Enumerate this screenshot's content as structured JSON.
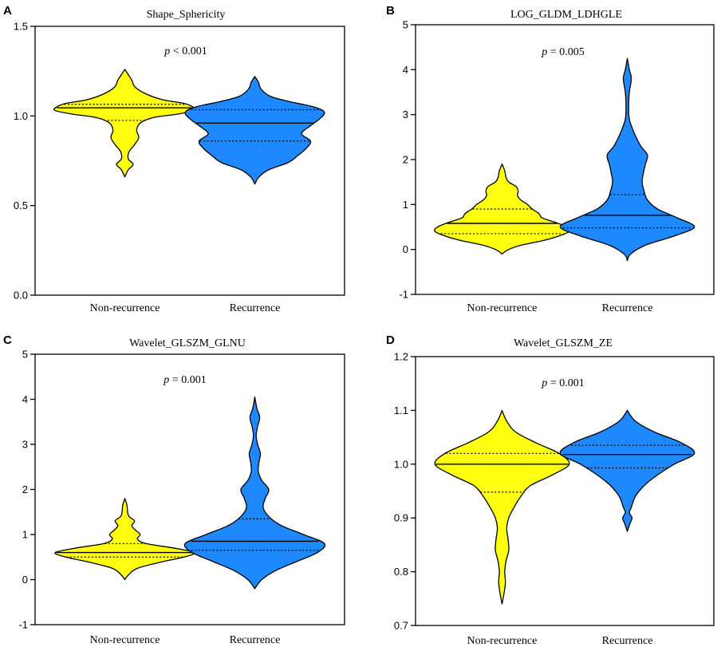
{
  "chart_data": [
    {
      "panel": "A",
      "type": "violin",
      "title": "Shape_Sphericity",
      "p_value": "< 0.001",
      "ylim": [
        0.0,
        1.5
      ],
      "yticks": [
        0.0,
        0.5,
        1.0,
        1.5
      ],
      "ytick_labels": [
        "0.0",
        "0.5",
        "1.0",
        "1.5"
      ],
      "categories": [
        "Non-recurrence",
        "Recurrence"
      ],
      "series": [
        {
          "name": "Non-recurrence",
          "color": "#FFFF10",
          "min": 0.66,
          "max": 1.26,
          "q1": 0.975,
          "median": 1.045,
          "q3": 1.065,
          "profile": [
            [
              0.66,
              0.0
            ],
            [
              0.7,
              0.05
            ],
            [
              0.73,
              0.12
            ],
            [
              0.76,
              0.05
            ],
            [
              0.8,
              0.06
            ],
            [
              0.84,
              0.14
            ],
            [
              0.88,
              0.2
            ],
            [
              0.92,
              0.17
            ],
            [
              0.96,
              0.22
            ],
            [
              0.99,
              0.4
            ],
            [
              1.01,
              0.75
            ],
            [
              1.03,
              1.0
            ],
            [
              1.05,
              0.98
            ],
            [
              1.07,
              0.85
            ],
            [
              1.09,
              0.55
            ],
            [
              1.12,
              0.32
            ],
            [
              1.16,
              0.15
            ],
            [
              1.2,
              0.1
            ],
            [
              1.23,
              0.05
            ],
            [
              1.26,
              0.0
            ]
          ]
        },
        {
          "name": "Recurrence",
          "color": "#1E88FF",
          "min": 0.62,
          "max": 1.22,
          "q1": 0.86,
          "median": 0.96,
          "q3": 1.035,
          "profile": [
            [
              0.62,
              0.0
            ],
            [
              0.66,
              0.06
            ],
            [
              0.7,
              0.2
            ],
            [
              0.74,
              0.48
            ],
            [
              0.78,
              0.62
            ],
            [
              0.82,
              0.74
            ],
            [
              0.86,
              0.8
            ],
            [
              0.9,
              0.67
            ],
            [
              0.94,
              0.78
            ],
            [
              0.98,
              0.92
            ],
            [
              1.02,
              1.0
            ],
            [
              1.05,
              0.85
            ],
            [
              1.08,
              0.5
            ],
            [
              1.11,
              0.22
            ],
            [
              1.15,
              0.09
            ],
            [
              1.19,
              0.05
            ],
            [
              1.22,
              0.0
            ]
          ]
        }
      ]
    },
    {
      "panel": "B",
      "type": "violin",
      "title": "LOG_GLDM_LDHGLE",
      "p_value": "= 0.005",
      "ylim": [
        -1,
        5
      ],
      "yticks": [
        -1,
        0,
        1,
        2,
        3,
        4,
        5
      ],
      "ytick_labels": [
        "-1",
        "0",
        "1",
        "2",
        "3",
        "4",
        "5"
      ],
      "categories": [
        "Non-recurrence",
        "Recurrence"
      ],
      "series": [
        {
          "name": "Non-recurrence",
          "color": "#FFFF10",
          "min": -0.1,
          "max": 1.9,
          "q1": 0.35,
          "median": 0.58,
          "q3": 0.9,
          "profile": [
            [
              -0.1,
              0.0
            ],
            [
              0.0,
              0.1
            ],
            [
              0.1,
              0.3
            ],
            [
              0.2,
              0.62
            ],
            [
              0.3,
              0.85
            ],
            [
              0.4,
              1.0
            ],
            [
              0.5,
              0.96
            ],
            [
              0.6,
              0.8
            ],
            [
              0.7,
              0.6
            ],
            [
              0.8,
              0.55
            ],
            [
              0.9,
              0.45
            ],
            [
              1.0,
              0.38
            ],
            [
              1.1,
              0.28
            ],
            [
              1.2,
              0.23
            ],
            [
              1.3,
              0.24
            ],
            [
              1.4,
              0.21
            ],
            [
              1.5,
              0.1
            ],
            [
              1.6,
              0.06
            ],
            [
              1.75,
              0.04
            ],
            [
              1.9,
              0.0
            ]
          ]
        },
        {
          "name": "Recurrence",
          "color": "#1E88FF",
          "min": -0.25,
          "max": 4.25,
          "q1": 0.48,
          "median": 0.76,
          "q3": 1.22,
          "profile": [
            [
              -0.25,
              0.0
            ],
            [
              -0.1,
              0.05
            ],
            [
              0.1,
              0.28
            ],
            [
              0.3,
              0.7
            ],
            [
              0.5,
              1.0
            ],
            [
              0.7,
              0.75
            ],
            [
              0.9,
              0.45
            ],
            [
              1.1,
              0.3
            ],
            [
              1.3,
              0.25
            ],
            [
              1.5,
              0.22
            ],
            [
              1.7,
              0.24
            ],
            [
              1.9,
              0.27
            ],
            [
              2.1,
              0.3
            ],
            [
              2.3,
              0.2
            ],
            [
              2.6,
              0.1
            ],
            [
              2.9,
              0.03
            ],
            [
              3.2,
              0.02
            ],
            [
              3.5,
              0.03
            ],
            [
              3.8,
              0.06
            ],
            [
              4.0,
              0.03
            ],
            [
              4.25,
              0.0
            ]
          ]
        }
      ]
    },
    {
      "panel": "C",
      "type": "violin",
      "title": "Wavelet_GLSZM_GLNU",
      "p_value": "= 0.001",
      "ylim": [
        -1,
        5
      ],
      "yticks": [
        -1,
        0,
        1,
        2,
        3,
        4,
        5
      ],
      "ytick_labels": [
        "-1",
        "0",
        "1",
        "2",
        "3",
        "4",
        "5"
      ],
      "categories": [
        "Non-recurrence",
        "Recurrence"
      ],
      "series": [
        {
          "name": "Non-recurrence",
          "color": "#FFFF10",
          "min": 0.0,
          "max": 1.8,
          "q1": 0.5,
          "median": 0.6,
          "q3": 0.8,
          "profile": [
            [
              0.0,
              0.0
            ],
            [
              0.1,
              0.05
            ],
            [
              0.25,
              0.18
            ],
            [
              0.4,
              0.55
            ],
            [
              0.5,
              0.85
            ],
            [
              0.6,
              1.0
            ],
            [
              0.7,
              0.7
            ],
            [
              0.8,
              0.3
            ],
            [
              0.9,
              0.18
            ],
            [
              1.0,
              0.22
            ],
            [
              1.1,
              0.15
            ],
            [
              1.2,
              0.1
            ],
            [
              1.3,
              0.14
            ],
            [
              1.4,
              0.06
            ],
            [
              1.5,
              0.04
            ],
            [
              1.65,
              0.03
            ],
            [
              1.8,
              0.0
            ]
          ]
        },
        {
          "name": "Recurrence",
          "color": "#1E88FF",
          "min": -0.2,
          "max": 4.05,
          "q1": 0.65,
          "median": 0.85,
          "q3": 1.35,
          "profile": [
            [
              -0.2,
              0.0
            ],
            [
              0.0,
              0.1
            ],
            [
              0.2,
              0.3
            ],
            [
              0.4,
              0.6
            ],
            [
              0.6,
              0.9
            ],
            [
              0.8,
              1.0
            ],
            [
              1.0,
              0.7
            ],
            [
              1.2,
              0.38
            ],
            [
              1.4,
              0.2
            ],
            [
              1.6,
              0.12
            ],
            [
              1.8,
              0.15
            ],
            [
              2.0,
              0.2
            ],
            [
              2.2,
              0.1
            ],
            [
              2.4,
              0.05
            ],
            [
              2.6,
              0.06
            ],
            [
              2.8,
              0.08
            ],
            [
              3.0,
              0.04
            ],
            [
              3.2,
              0.02
            ],
            [
              3.4,
              0.04
            ],
            [
              3.6,
              0.07
            ],
            [
              3.8,
              0.03
            ],
            [
              4.05,
              0.0
            ]
          ]
        }
      ]
    },
    {
      "panel": "D",
      "type": "violin",
      "title": "Wavelet_GLSZM_ZE",
      "p_value": "= 0.001",
      "ylim": [
        0.7,
        1.2
      ],
      "yticks": [
        0.7,
        0.8,
        0.9,
        1.0,
        1.1,
        1.2
      ],
      "ytick_labels": [
        "0.7",
        "0.8",
        "0.9",
        "1.0",
        "1.1",
        "1.2"
      ],
      "categories": [
        "Non-recurrence",
        "Recurrence"
      ],
      "series": [
        {
          "name": "Non-recurrence",
          "color": "#FFFF10",
          "min": 0.74,
          "max": 1.1,
          "q1": 0.948,
          "median": 1.0,
          "q3": 1.02,
          "profile": [
            [
              0.74,
              0.0
            ],
            [
              0.76,
              0.03
            ],
            [
              0.78,
              0.05
            ],
            [
              0.8,
              0.04
            ],
            [
              0.82,
              0.06
            ],
            [
              0.84,
              0.1
            ],
            [
              0.86,
              0.09
            ],
            [
              0.88,
              0.07
            ],
            [
              0.9,
              0.1
            ],
            [
              0.92,
              0.18
            ],
            [
              0.94,
              0.28
            ],
            [
              0.96,
              0.42
            ],
            [
              0.98,
              0.75
            ],
            [
              1.0,
              1.0
            ],
            [
              1.02,
              0.85
            ],
            [
              1.04,
              0.5
            ],
            [
              1.06,
              0.2
            ],
            [
              1.08,
              0.07
            ],
            [
              1.1,
              0.0
            ]
          ]
        },
        {
          "name": "Recurrence",
          "color": "#1E88FF",
          "min": 0.875,
          "max": 1.1,
          "q1": 0.993,
          "median": 1.018,
          "q3": 1.035,
          "profile": [
            [
              0.875,
              0.0
            ],
            [
              0.89,
              0.04
            ],
            [
              0.9,
              0.07
            ],
            [
              0.91,
              0.03
            ],
            [
              0.92,
              0.06
            ],
            [
              0.94,
              0.12
            ],
            [
              0.96,
              0.25
            ],
            [
              0.98,
              0.45
            ],
            [
              1.0,
              0.7
            ],
            [
              1.02,
              1.0
            ],
            [
              1.04,
              0.8
            ],
            [
              1.06,
              0.4
            ],
            [
              1.08,
              0.12
            ],
            [
              1.1,
              0.0
            ]
          ]
        }
      ]
    }
  ]
}
